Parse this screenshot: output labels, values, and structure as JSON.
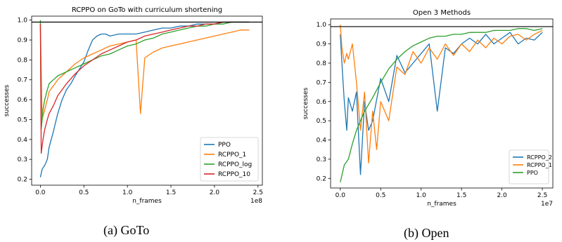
{
  "chart_data": [
    {
      "type": "line",
      "title": "RCPPO on GoTo with curriculum shortening",
      "xlabel": "n_frames",
      "ylabel": "successes",
      "x_multiplier": "1e8",
      "xlim": [
        -0.1,
        2.55
      ],
      "ylim": [
        0.17,
        1.02
      ],
      "xticks": [
        "0.0",
        "0.5",
        "1.0",
        "1.5",
        "2.0",
        "2.5"
      ],
      "yticks": [
        "0.2",
        "0.3",
        "0.4",
        "0.5",
        "0.6",
        "0.7",
        "0.8",
        "0.9",
        "1.0"
      ],
      "hline": 0.99,
      "legend_position": "lower-right",
      "caption": "(a) GoTo",
      "series": [
        {
          "name": "PPO",
          "color": "#1f77b4",
          "x": [
            0.0,
            0.02,
            0.05,
            0.08,
            0.1,
            0.15,
            0.2,
            0.25,
            0.3,
            0.35,
            0.4,
            0.5,
            0.55,
            0.6,
            0.65,
            0.7,
            0.75,
            0.8,
            0.9,
            1.0,
            1.1,
            1.2,
            1.3,
            1.4,
            1.5,
            1.6,
            1.7,
            1.8,
            1.9,
            2.0,
            2.1,
            2.2,
            2.3,
            2.4
          ],
          "y": [
            0.21,
            0.25,
            0.27,
            0.3,
            0.36,
            0.44,
            0.53,
            0.6,
            0.65,
            0.68,
            0.72,
            0.79,
            0.85,
            0.9,
            0.92,
            0.93,
            0.93,
            0.92,
            0.93,
            0.93,
            0.93,
            0.94,
            0.95,
            0.96,
            0.96,
            0.97,
            0.97,
            0.98,
            0.98,
            0.98,
            0.99,
            0.99,
            0.99,
            0.99
          ]
        },
        {
          "name": "RCPPO_1",
          "color": "#ff7f0e",
          "x": [
            0.0,
            0.02,
            0.05,
            0.08,
            0.1,
            0.15,
            0.2,
            0.3,
            0.4,
            0.5,
            0.6,
            0.7,
            0.8,
            0.9,
            1.0,
            1.1,
            1.15,
            1.2,
            1.3,
            1.4,
            1.5,
            1.6,
            1.7,
            1.8,
            1.9,
            2.0,
            2.1,
            2.2,
            2.3,
            2.4
          ],
          "y": [
            0.98,
            0.5,
            0.55,
            0.6,
            0.64,
            0.67,
            0.7,
            0.74,
            0.78,
            0.81,
            0.83,
            0.85,
            0.87,
            0.88,
            0.89,
            0.9,
            0.53,
            0.81,
            0.84,
            0.86,
            0.87,
            0.88,
            0.89,
            0.9,
            0.91,
            0.92,
            0.93,
            0.94,
            0.95,
            0.95
          ]
        },
        {
          "name": "RCPPO_log",
          "color": "#2ca02c",
          "x": [
            0.0,
            0.01,
            0.03,
            0.05,
            0.08,
            0.1,
            0.15,
            0.2,
            0.3,
            0.4,
            0.5,
            0.6,
            0.7,
            0.8,
            0.9,
            1.0,
            1.1,
            1.2,
            1.3,
            1.4,
            1.5,
            1.6,
            1.7,
            1.8,
            1.9,
            2.0,
            2.1,
            2.2,
            2.3,
            2.4
          ],
          "y": [
            1.0,
            0.45,
            0.55,
            0.6,
            0.65,
            0.68,
            0.7,
            0.72,
            0.74,
            0.76,
            0.78,
            0.8,
            0.82,
            0.83,
            0.85,
            0.87,
            0.88,
            0.9,
            0.91,
            0.93,
            0.94,
            0.95,
            0.96,
            0.97,
            0.97,
            0.98,
            0.98,
            0.99,
            0.99,
            0.99
          ]
        },
        {
          "name": "RCPPO_10",
          "color": "#d62728",
          "x": [
            0.0,
            0.01,
            0.03,
            0.05,
            0.08,
            0.1,
            0.15,
            0.2,
            0.3,
            0.4,
            0.5,
            0.6,
            0.7,
            0.8,
            0.9,
            1.0,
            1.1,
            1.2,
            1.3,
            1.4,
            1.5,
            1.6,
            1.7,
            1.8,
            1.9,
            2.0,
            2.1,
            2.2,
            2.3,
            2.4
          ],
          "y": [
            0.98,
            0.33,
            0.4,
            0.45,
            0.5,
            0.53,
            0.57,
            0.62,
            0.68,
            0.73,
            0.77,
            0.8,
            0.83,
            0.85,
            0.87,
            0.89,
            0.9,
            0.92,
            0.93,
            0.94,
            0.95,
            0.96,
            0.97,
            0.97,
            0.98,
            0.98,
            0.99,
            0.99,
            0.99,
            0.99
          ]
        }
      ]
    },
    {
      "type": "line",
      "title": "Open 3 Methods",
      "xlabel": "n_frames",
      "ylabel": "successes",
      "x_multiplier": "1e7",
      "xlim": [
        -0.12,
        2.63
      ],
      "ylim": [
        0.15,
        1.03
      ],
      "xticks": [
        "0.0",
        "0.5",
        "1.0",
        "1.5",
        "2.0",
        "2.5"
      ],
      "yticks": [
        "0.2",
        "0.3",
        "0.4",
        "0.5",
        "0.6",
        "0.7",
        "0.8",
        "0.9",
        "1.0"
      ],
      "hline": 0.99,
      "legend_position": "lower-right",
      "caption": "(b) Open",
      "series": [
        {
          "name": "RCPPO_2",
          "color": "#1f77b4",
          "x": [
            0.0,
            0.02,
            0.05,
            0.08,
            0.1,
            0.15,
            0.2,
            0.25,
            0.3,
            0.35,
            0.4,
            0.5,
            0.6,
            0.7,
            0.8,
            0.9,
            1.0,
            1.1,
            1.2,
            1.3,
            1.4,
            1.5,
            1.6,
            1.7,
            1.8,
            1.9,
            2.0,
            2.1,
            2.2,
            2.3,
            2.4,
            2.5
          ],
          "y": [
            0.95,
            0.8,
            0.6,
            0.45,
            0.62,
            0.55,
            0.65,
            0.22,
            0.6,
            0.45,
            0.5,
            0.72,
            0.6,
            0.84,
            0.75,
            0.8,
            0.85,
            0.9,
            0.55,
            0.88,
            0.85,
            0.9,
            0.93,
            0.9,
            0.95,
            0.9,
            0.93,
            0.96,
            0.9,
            0.93,
            0.92,
            0.96
          ]
        },
        {
          "name": "RCPPO_1",
          "color": "#ff7f0e",
          "x": [
            0.0,
            0.02,
            0.05,
            0.08,
            0.1,
            0.15,
            0.2,
            0.25,
            0.3,
            0.35,
            0.4,
            0.45,
            0.5,
            0.6,
            0.7,
            0.8,
            0.9,
            1.0,
            1.1,
            1.2,
            1.3,
            1.4,
            1.5,
            1.6,
            1.7,
            1.8,
            1.9,
            2.0,
            2.1,
            2.2,
            2.3,
            2.4,
            2.5
          ],
          "y": [
            1.0,
            0.88,
            0.8,
            0.85,
            0.82,
            0.9,
            0.7,
            0.45,
            0.65,
            0.28,
            0.55,
            0.35,
            0.6,
            0.5,
            0.78,
            0.74,
            0.86,
            0.8,
            0.88,
            0.82,
            0.9,
            0.84,
            0.9,
            0.86,
            0.92,
            0.88,
            0.93,
            0.9,
            0.94,
            0.95,
            0.92,
            0.95,
            0.97
          ]
        },
        {
          "name": "PPO",
          "color": "#2ca02c",
          "x": [
            0.0,
            0.05,
            0.1,
            0.15,
            0.2,
            0.25,
            0.3,
            0.4,
            0.5,
            0.6,
            0.7,
            0.8,
            0.9,
            1.0,
            1.1,
            1.2,
            1.3,
            1.4,
            1.5,
            1.6,
            1.7,
            1.8,
            1.9,
            2.0,
            2.1,
            2.2,
            2.3,
            2.4,
            2.5
          ],
          "y": [
            0.18,
            0.27,
            0.3,
            0.38,
            0.45,
            0.5,
            0.55,
            0.62,
            0.7,
            0.77,
            0.82,
            0.86,
            0.89,
            0.91,
            0.93,
            0.94,
            0.94,
            0.95,
            0.95,
            0.96,
            0.96,
            0.96,
            0.97,
            0.97,
            0.97,
            0.98,
            0.98,
            0.97,
            0.98
          ]
        }
      ]
    }
  ]
}
